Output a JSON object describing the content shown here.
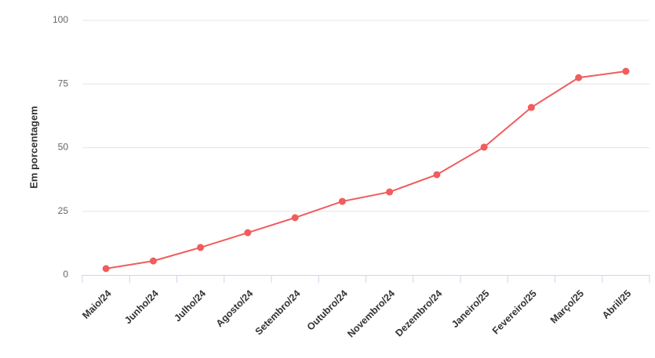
{
  "chart_data": {
    "type": "line",
    "y_label": "Em porcentagem",
    "categories": [
      "Maio/24",
      "Junho/24",
      "Julho/24",
      "Agosto/24",
      "Setembro/24",
      "Outubro/24",
      "Novembro/24",
      "Dezembro/24",
      "Janeiro/25",
      "Fevereiro/25",
      "Março/25",
      "Abril/25"
    ],
    "series": [
      {
        "color": "#f15c5c",
        "values": [
          2.5,
          5.5,
          10.8,
          16.6,
          22.5,
          28.9,
          32.6,
          39.4,
          50.2,
          65.8,
          77.5,
          80.0
        ]
      }
    ],
    "ylim": [
      0,
      100
    ],
    "yticks": [
      0,
      25,
      50,
      75,
      100
    ],
    "grid": true
  }
}
